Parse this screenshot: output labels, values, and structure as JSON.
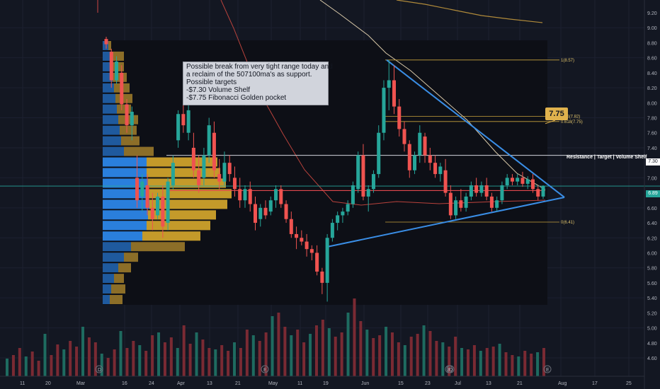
{
  "chart_data": {
    "type": "candlestick",
    "y_axis_ticks": [
      "9.20",
      "9.00",
      "8.80",
      "8.60",
      "8.40",
      "8.20",
      "8.00",
      "7.80",
      "7.60",
      "7.40",
      "7.20",
      "7.00",
      "6.80",
      "6.60",
      "6.40",
      "6.20",
      "6.00",
      "5.80",
      "5.60",
      "5.40",
      "5.20",
      "5.00",
      "4.80",
      "4.60"
    ],
    "x_axis_ticks": [
      "11",
      "20",
      "Mar",
      "16",
      "24",
      "Apr",
      "13",
      "21",
      "May",
      "11",
      "19",
      "Jun",
      "15",
      "23",
      "Jul",
      "13",
      "21",
      "Aug",
      "17",
      "25"
    ],
    "ylim": [
      4.55,
      9.3
    ],
    "fib_labels": [
      "1(8.57)",
      "0.65(7.82)",
      "0.618(7.75)",
      "0(6.41)"
    ],
    "fib_levels": [
      8.57,
      7.82,
      7.75,
      6.41
    ],
    "price_labels": {
      "current": "6.89",
      "resistance": "7.30"
    },
    "current_price": 6.89,
    "resistance_level": 7.3,
    "red_line_level": 6.83,
    "resistance_label": "Resistance | Target | Volume Shelf",
    "callout": "7.75",
    "note_lines": [
      "Possible break from very tight range today and",
      "a reclaim of the 507100ma's as support.",
      "Possible targets",
      "-$7.30 Volume Shelf",
      "-$7.75 Fibonacci Golden pocket"
    ],
    "event_markers": [
      "D",
      "E",
      "E",
      "D",
      "E"
    ],
    "candles": [
      {
        "o": 8.85,
        "h": 8.88,
        "l": 8.72,
        "c": 8.78
      },
      {
        "o": 8.68,
        "h": 8.72,
        "l": 8.2,
        "c": 8.3
      },
      {
        "o": 8.3,
        "h": 8.62,
        "l": 8.25,
        "c": 8.55
      },
      {
        "o": 8.4,
        "h": 8.5,
        "l": 7.9,
        "c": 7.98
      },
      {
        "o": 7.98,
        "h": 8.05,
        "l": 7.6,
        "c": 7.7
      },
      {
        "o": 7.7,
        "h": 7.95,
        "l": 7.5,
        "c": 7.88
      },
      {
        "o": 7.0,
        "h": 7.3,
        "l": 6.6,
        "c": 6.7
      },
      {
        "o": 6.75,
        "h": 7.05,
        "l": 6.55,
        "c": 6.95
      },
      {
        "o": 6.9,
        "h": 7.05,
        "l": 6.5,
        "c": 6.6
      },
      {
        "o": 6.6,
        "h": 6.8,
        "l": 6.3,
        "c": 6.45
      },
      {
        "o": 6.5,
        "h": 6.8,
        "l": 6.45,
        "c": 6.75
      },
      {
        "o": 6.75,
        "h": 6.9,
        "l": 6.2,
        "c": 6.35
      },
      {
        "o": 6.4,
        "h": 7.0,
        "l": 6.3,
        "c": 6.95
      },
      {
        "o": 6.9,
        "h": 7.3,
        "l": 6.85,
        "c": 7.2
      },
      {
        "o": 7.5,
        "h": 7.9,
        "l": 7.4,
        "c": 7.85
      },
      {
        "o": 7.85,
        "h": 8.0,
        "l": 7.6,
        "c": 7.7
      },
      {
        "o": 7.6,
        "h": 8.05,
        "l": 7.5,
        "c": 7.9
      },
      {
        "o": 7.4,
        "h": 7.6,
        "l": 7.0,
        "c": 7.1
      },
      {
        "o": 7.1,
        "h": 7.3,
        "l": 6.8,
        "c": 6.9
      },
      {
        "o": 7.0,
        "h": 7.4,
        "l": 6.9,
        "c": 7.3
      },
      {
        "o": 7.3,
        "h": 7.8,
        "l": 7.2,
        "c": 7.7
      },
      {
        "o": 7.6,
        "h": 7.75,
        "l": 7.0,
        "c": 7.1
      },
      {
        "o": 7.05,
        "h": 7.25,
        "l": 6.85,
        "c": 6.95
      },
      {
        "o": 6.95,
        "h": 7.35,
        "l": 6.9,
        "c": 7.2
      },
      {
        "o": 7.2,
        "h": 7.3,
        "l": 6.95,
        "c": 7.05
      },
      {
        "o": 7.0,
        "h": 7.15,
        "l": 6.75,
        "c": 6.85
      },
      {
        "o": 6.85,
        "h": 7.0,
        "l": 6.6,
        "c": 6.7
      },
      {
        "o": 6.7,
        "h": 6.9,
        "l": 6.6,
        "c": 6.85
      },
      {
        "o": 6.85,
        "h": 6.95,
        "l": 6.55,
        "c": 6.65
      },
      {
        "o": 6.65,
        "h": 6.75,
        "l": 6.3,
        "c": 6.4
      },
      {
        "o": 6.45,
        "h": 6.65,
        "l": 6.35,
        "c": 6.6
      },
      {
        "o": 6.6,
        "h": 6.7,
        "l": 6.45,
        "c": 6.5
      },
      {
        "o": 6.55,
        "h": 6.75,
        "l": 6.5,
        "c": 6.7
      },
      {
        "o": 6.7,
        "h": 6.9,
        "l": 6.6,
        "c": 6.85
      },
      {
        "o": 6.85,
        "h": 6.9,
        "l": 6.6,
        "c": 6.65
      },
      {
        "o": 6.65,
        "h": 6.7,
        "l": 6.4,
        "c": 6.45
      },
      {
        "o": 6.45,
        "h": 6.55,
        "l": 6.2,
        "c": 6.25
      },
      {
        "o": 6.25,
        "h": 6.35,
        "l": 6.05,
        "c": 6.2
      },
      {
        "o": 6.2,
        "h": 6.3,
        "l": 6.1,
        "c": 6.15
      },
      {
        "o": 6.15,
        "h": 6.25,
        "l": 5.95,
        "c": 6.05
      },
      {
        "o": 6.05,
        "h": 6.1,
        "l": 5.9,
        "c": 6.0
      },
      {
        "o": 6.0,
        "h": 6.1,
        "l": 5.7,
        "c": 5.75
      },
      {
        "o": 5.75,
        "h": 5.8,
        "l": 5.45,
        "c": 5.6
      },
      {
        "o": 5.6,
        "h": 6.25,
        "l": 5.35,
        "c": 6.2
      },
      {
        "o": 6.2,
        "h": 6.45,
        "l": 6.15,
        "c": 6.4
      },
      {
        "o": 6.4,
        "h": 6.55,
        "l": 6.3,
        "c": 6.5
      },
      {
        "o": 6.5,
        "h": 6.6,
        "l": 6.4,
        "c": 6.55
      },
      {
        "o": 6.55,
        "h": 6.7,
        "l": 6.5,
        "c": 6.65
      },
      {
        "o": 6.65,
        "h": 6.95,
        "l": 6.6,
        "c": 6.9
      },
      {
        "o": 6.85,
        "h": 7.35,
        "l": 6.8,
        "c": 7.3
      },
      {
        "o": 7.3,
        "h": 7.45,
        "l": 6.7,
        "c": 6.75
      },
      {
        "o": 6.75,
        "h": 6.9,
        "l": 6.55,
        "c": 6.85
      },
      {
        "o": 6.85,
        "h": 7.1,
        "l": 6.8,
        "c": 7.05
      },
      {
        "o": 7.05,
        "h": 7.7,
        "l": 7.0,
        "c": 7.6
      },
      {
        "o": 7.6,
        "h": 8.3,
        "l": 7.5,
        "c": 8.2
      },
      {
        "o": 8.2,
        "h": 8.57,
        "l": 7.9,
        "c": 8.3
      },
      {
        "o": 8.3,
        "h": 8.5,
        "l": 7.85,
        "c": 7.95
      },
      {
        "o": 7.95,
        "h": 8.05,
        "l": 7.55,
        "c": 7.65
      },
      {
        "o": 7.65,
        "h": 7.75,
        "l": 7.35,
        "c": 7.45
      },
      {
        "o": 7.45,
        "h": 7.5,
        "l": 7.0,
        "c": 7.1
      },
      {
        "o": 7.1,
        "h": 7.35,
        "l": 7.05,
        "c": 7.3
      },
      {
        "o": 7.3,
        "h": 7.7,
        "l": 7.2,
        "c": 7.6
      },
      {
        "o": 7.55,
        "h": 7.6,
        "l": 7.2,
        "c": 7.3
      },
      {
        "o": 7.3,
        "h": 7.4,
        "l": 7.1,
        "c": 7.2
      },
      {
        "o": 7.2,
        "h": 7.3,
        "l": 7.0,
        "c": 7.05
      },
      {
        "o": 7.05,
        "h": 7.2,
        "l": 6.95,
        "c": 7.15
      },
      {
        "o": 7.1,
        "h": 7.25,
        "l": 6.75,
        "c": 6.8
      },
      {
        "o": 6.8,
        "h": 6.9,
        "l": 6.45,
        "c": 6.5
      },
      {
        "o": 6.5,
        "h": 6.75,
        "l": 6.45,
        "c": 6.7
      },
      {
        "o": 6.7,
        "h": 6.85,
        "l": 6.55,
        "c": 6.6
      },
      {
        "o": 6.6,
        "h": 6.8,
        "l": 6.55,
        "c": 6.75
      },
      {
        "o": 6.75,
        "h": 6.95,
        "l": 6.7,
        "c": 6.9
      },
      {
        "o": 6.9,
        "h": 7.0,
        "l": 6.75,
        "c": 6.8
      },
      {
        "o": 6.8,
        "h": 6.95,
        "l": 6.75,
        "c": 6.9
      },
      {
        "o": 6.9,
        "h": 7.0,
        "l": 6.7,
        "c": 6.75
      },
      {
        "o": 6.75,
        "h": 6.8,
        "l": 6.55,
        "c": 6.6
      },
      {
        "o": 6.6,
        "h": 6.75,
        "l": 6.55,
        "c": 6.7
      },
      {
        "o": 6.7,
        "h": 6.95,
        "l": 6.65,
        "c": 6.9
      },
      {
        "o": 6.9,
        "h": 7.05,
        "l": 6.85,
        "c": 7.0
      },
      {
        "o": 7.0,
        "h": 7.05,
        "l": 6.9,
        "c": 6.95
      },
      {
        "o": 6.95,
        "h": 7.05,
        "l": 6.9,
        "c": 7.0
      },
      {
        "o": 7.0,
        "h": 7.08,
        "l": 6.88,
        "c": 6.92
      },
      {
        "o": 6.92,
        "h": 7.02,
        "l": 6.85,
        "c": 6.98
      },
      {
        "o": 6.98,
        "h": 7.05,
        "l": 6.8,
        "c": 6.85
      },
      {
        "o": 6.85,
        "h": 6.9,
        "l": 6.7,
        "c": 6.75
      },
      {
        "o": 6.75,
        "h": 6.9,
        "l": 6.72,
        "c": 6.89
      }
    ]
  }
}
